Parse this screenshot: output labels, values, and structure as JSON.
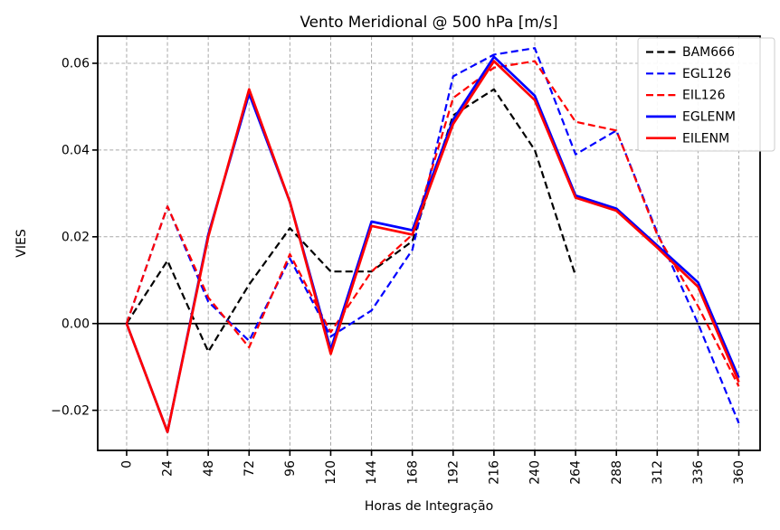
{
  "chart_data": {
    "type": "line",
    "title": "Vento Meridional @ 500 hPa [m/s]",
    "xlabel": "Horas de Integração",
    "ylabel": "VIES",
    "x": [
      0,
      24,
      48,
      72,
      96,
      120,
      144,
      168,
      192,
      216,
      240,
      264,
      288,
      312,
      336,
      360
    ],
    "xtick_labels": [
      "0",
      "24",
      "48",
      "72",
      "96",
      "120",
      "144",
      "168",
      "192",
      "216",
      "240",
      "264",
      "288",
      "312",
      "336",
      "360"
    ],
    "xtick_rotation": 90,
    "yticks": [
      -0.02,
      0.0,
      0.02,
      0.04,
      0.06
    ],
    "ytick_labels": [
      "−0.02",
      "0.00",
      "0.02",
      "0.04",
      "0.06"
    ],
    "xlim": [
      -17,
      372.5
    ],
    "ylim": [
      -0.02925,
      0.06625
    ],
    "grid": true,
    "zero_line": true,
    "legend_position": "upper right",
    "colors": {
      "black": "#000000",
      "blue": "#0000ff",
      "red": "#ff0000",
      "grid": "#a8a8a8",
      "legend_border": "#cccccc"
    },
    "series": [
      {
        "name": "BAM666",
        "color": "#000000",
        "style": "dashed",
        "values": [
          0.0,
          0.0145,
          -0.0065,
          0.009,
          0.022,
          0.012,
          0.012,
          0.019,
          0.048,
          0.054,
          0.04,
          0.011,
          null,
          null,
          null,
          null
        ]
      },
      {
        "name": "EGL126",
        "color": "#0000ff",
        "style": "dashed",
        "values": [
          0.0,
          0.027,
          0.005,
          -0.004,
          0.015,
          -0.003,
          0.003,
          0.017,
          0.057,
          0.062,
          0.0635,
          0.039,
          0.0445,
          0.021,
          0.0,
          -0.023
        ]
      },
      {
        "name": "EIL126",
        "color": "#ff0000",
        "style": "dashed",
        "values": [
          0.0,
          0.027,
          0.006,
          -0.0055,
          0.016,
          -0.002,
          0.012,
          0.0205,
          0.052,
          0.059,
          0.0605,
          0.0465,
          0.0445,
          0.0205,
          0.004,
          -0.0145
        ]
      },
      {
        "name": "EGLENM",
        "color": "#0000ff",
        "style": "solid",
        "values": [
          0.0,
          -0.025,
          0.0205,
          0.053,
          0.028,
          -0.006,
          0.0235,
          0.0215,
          0.047,
          0.0615,
          0.0525,
          0.0295,
          0.0265,
          0.018,
          0.0095,
          -0.0125
        ]
      },
      {
        "name": "EILENM",
        "color": "#ff0000",
        "style": "solid",
        "values": [
          0.0,
          -0.025,
          0.02,
          0.054,
          0.028,
          -0.007,
          0.0225,
          0.0205,
          0.046,
          0.0605,
          0.0515,
          0.029,
          0.026,
          0.0175,
          0.0085,
          -0.0135
        ]
      }
    ]
  }
}
